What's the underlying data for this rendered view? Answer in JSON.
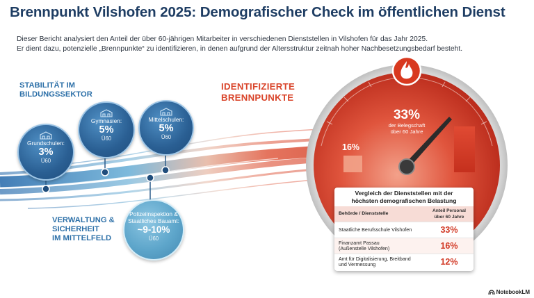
{
  "title": "Brennpunkt Vilshofen 2025: Demografischer Check im öffentlichen Dienst",
  "intro": [
    "Dieser Bericht analysiert den Anteil der über 60-jährigen Mitarbeiter in verschiedenen Dienststellen in Vilshofen für das Jahr 2025.",
    "Er dient dazu, potenzielle „Brennpunkte“ zu identifizieren, in denen aufgrund der Altersstruktur zeitnah hoher Nachbesetzungsbedarf besteht."
  ],
  "education": {
    "heading": [
      "STABILITÄT IM",
      "BILDUNGSSEKTOR"
    ],
    "bubbles": [
      {
        "label": "Grundschulen:",
        "value": "3%",
        "sub": "Ü60",
        "icon": "school-icon"
      },
      {
        "label": "Gymnasien:",
        "value": "5%",
        "sub": "Ü60",
        "icon": "school-icon"
      },
      {
        "label": "Mittelschulen:",
        "value": "5%",
        "sub": "Ü60",
        "icon": "school-icon"
      }
    ]
  },
  "administration": {
    "heading": [
      "VERWALTUNG &",
      "SICHERHEIT",
      "IM MITTELFELD"
    ],
    "bubble": {
      "label": [
        "Polizeiinspektion &",
        "Staatliches Bauamt:"
      ],
      "value": "~9-10%",
      "sub": "Ü60"
    }
  },
  "hotspots": {
    "heading": [
      "IDENTIFIZIERTE",
      "BRENNPUNKTE"
    ],
    "gauge": {
      "left_value": "16%",
      "main_value": "33%",
      "main_caption": [
        "der Belegschaft",
        "über 60 Jahre"
      ],
      "icon": "flame-icon",
      "left_bar_level": 16,
      "right_bar_level": 33
    }
  },
  "table": {
    "title": [
      "Vergleich der Dienststellen mit der",
      "höchsten demografischen Belastung"
    ],
    "headers": [
      "Behörde / Dienststelle",
      "Anteil Personal",
      "über 60 Jahre"
    ],
    "rows": [
      {
        "name": [
          "Staatliche Berufsschule Vilshofen"
        ],
        "value": "33%"
      },
      {
        "name": [
          "Finanzamt Passau",
          "(Außenstelle Vilshofen)"
        ],
        "value": "16%"
      },
      {
        "name": [
          "Amt für Digitalisierung, Breitband",
          "und Vermessung"
        ],
        "value": "12%"
      }
    ]
  },
  "brand": "NotebookLM",
  "colors": {
    "title": "#1e3d63",
    "accent_blue": "#2d70a8",
    "accent_red": "#d9442a",
    "gauge_red": "#c7301f"
  }
}
